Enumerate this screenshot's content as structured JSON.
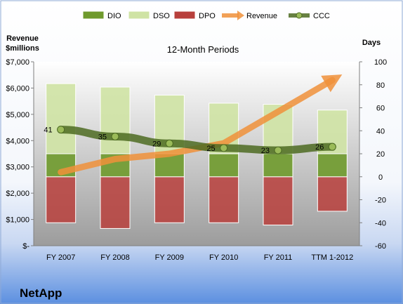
{
  "company": "NetApp",
  "chart_data": {
    "type": "bar",
    "title": "12-Month Periods",
    "left_axis": {
      "label_line1": "Revenue",
      "label_line2": "$millions",
      "ylim": [
        0,
        7000
      ],
      "ticks": [
        0,
        1000,
        2000,
        3000,
        4000,
        5000,
        6000,
        7000
      ],
      "tick_labels": [
        "$-",
        "$1,000",
        "$2,000",
        "$3,000",
        "$4,000",
        "$5,000",
        "$6,000",
        "$7,000"
      ]
    },
    "right_axis": {
      "label": "Days",
      "ylim": [
        -60,
        100
      ],
      "ticks": [
        -60,
        -40,
        -20,
        0,
        20,
        40,
        60,
        80,
        100
      ],
      "tick_labels": [
        "-60",
        "-40",
        "-20",
        "0",
        "20",
        "40",
        "60",
        "80",
        "100"
      ]
    },
    "categories": [
      "FY 2007",
      "FY 2008",
      "FY 2009",
      "FY 2010",
      "FY 2011",
      "TTM 1-2012"
    ],
    "legend_position": "top",
    "grid": false,
    "series": [
      {
        "name": "DIO",
        "type": "stacked-bar",
        "axis": "right",
        "color": "#6f9a2c",
        "values": [
          20,
          20,
          20,
          20,
          20,
          20
        ]
      },
      {
        "name": "DSO",
        "type": "stacked-bar",
        "axis": "right",
        "color": "#cfe3a4",
        "values": [
          61,
          58,
          51,
          44,
          43,
          38
        ]
      },
      {
        "name": "DPO",
        "type": "bar",
        "axis": "right",
        "color": "#b8403c",
        "values": [
          -40,
          -45,
          -40,
          -40,
          -42,
          -30
        ]
      },
      {
        "name": "Revenue",
        "type": "arrow-line",
        "axis": "left",
        "color": "#f0913a",
        "values": [
          2800,
          3300,
          3500,
          3900,
          5100,
          6300
        ]
      },
      {
        "name": "CCC",
        "type": "line",
        "axis": "right",
        "color": "#4d6b22",
        "values": [
          41,
          35,
          29,
          25,
          23,
          26
        ],
        "data_labels": [
          "41",
          "35",
          "29",
          "25",
          "23",
          "26"
        ]
      }
    ]
  }
}
